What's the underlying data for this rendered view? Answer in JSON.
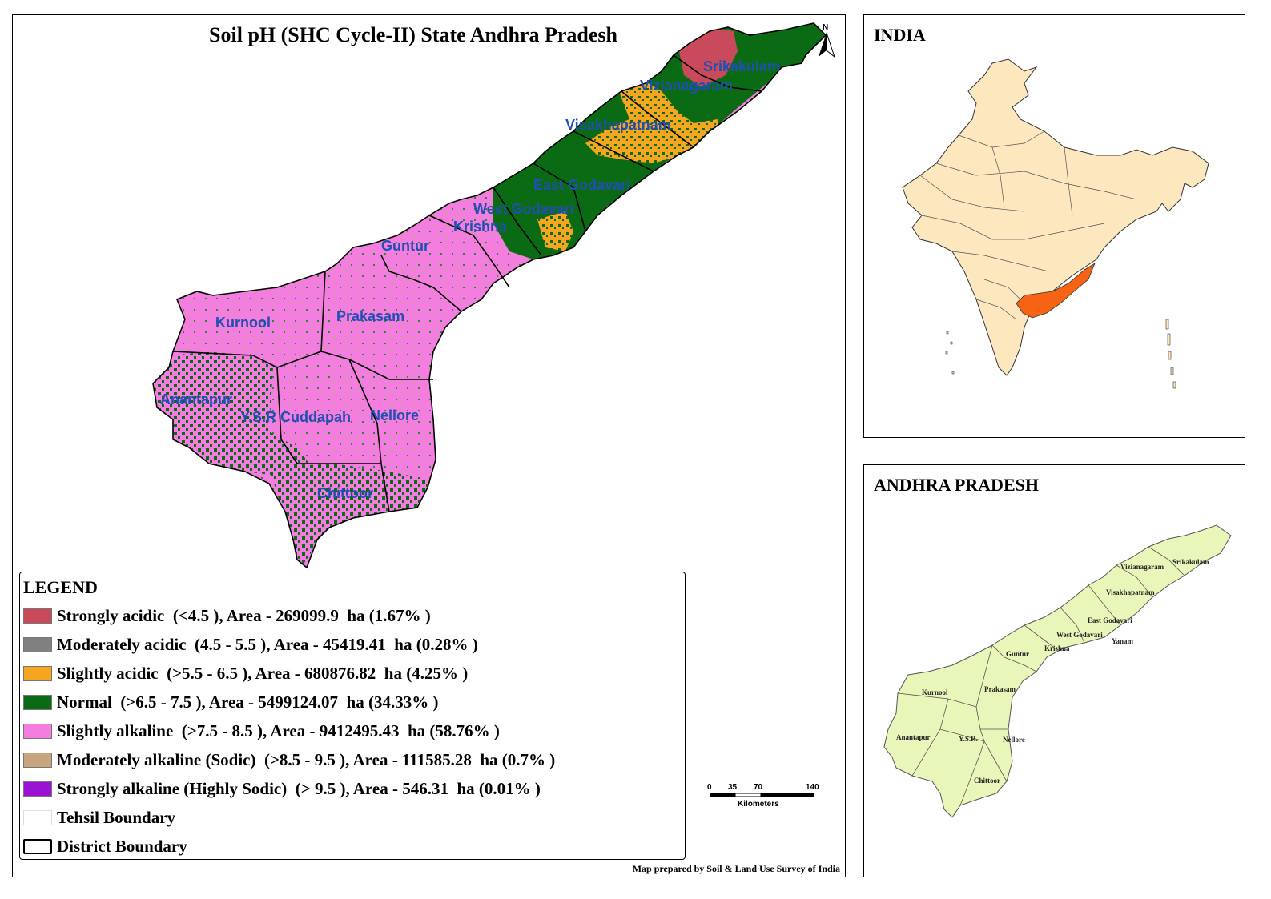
{
  "map": {
    "title": "Soil pH (SHC Cycle-II) State Andhra Pradesh",
    "north_label": "N",
    "credit": "Map prepared by Soil & Land Use Survey of India",
    "scale_bar": {
      "ticks": [
        "0",
        "35",
        "70",
        "140"
      ],
      "unit": "Kilometers"
    },
    "district_labels": [
      "Srikakulam",
      "Vizianagaram",
      "Visakhapatnam",
      "East Godavari",
      "West Godavari",
      "Krishna",
      "Guntur",
      "Kurnool",
      "Prakasam",
      "Anantapur",
      "Y.S.R Cuddapah",
      "Nellore",
      "Chittoor"
    ]
  },
  "legend": {
    "title": "LEGEND",
    "items": [
      {
        "label": "Strongly acidic  (<4.5 ), Area - 269099.9  ha (1.67% )",
        "color": "#c94a5a"
      },
      {
        "label": "Moderately acidic  (4.5 - 5.5 ), Area - 45419.41  ha (0.28% )",
        "color": "#808080"
      },
      {
        "label": "Slightly acidic  (>5.5 - 6.5 ), Area - 680876.82  ha (4.25% )",
        "color": "#f5a51e"
      },
      {
        "label": "Normal  (>6.5 - 7.5 ), Area - 5499124.07  ha (34.33% )",
        "color": "#0b6b14"
      },
      {
        "label": "Slightly alkaline  (>7.5 - 8.5 ), Area - 9412495.43  ha (58.76% )",
        "color": "#f47ee0"
      },
      {
        "label": "Moderately alkaline (Sodic)  (>8.5 - 9.5 ), Area - 111585.28  ha (0.7% )",
        "color": "#c7a67d"
      },
      {
        "label": "Strongly alkaline (Highly Sodic)  (> 9.5 ), Area - 546.31  ha (0.01% )",
        "color": "#9b12d4"
      },
      {
        "label": "Tehsil Boundary",
        "color": "#ffffff"
      },
      {
        "label": "District Boundary",
        "color": "#ffffff"
      }
    ]
  },
  "india_inset": {
    "title": "INDIA",
    "land_color": "#fde7bf",
    "highlight_color": "#f76314"
  },
  "ap_inset": {
    "title": "ANDHRA PRADESH",
    "fill_color": "#e8f7b9",
    "district_labels": [
      "Srikakulam",
      "Vizianagaram",
      "Visakhapatnam",
      "East Godavari",
      "West Godavari",
      "Yanam",
      "Krishna",
      "Guntur",
      "Kurnool",
      "Prakasam",
      "Anantapur",
      "Y.S.R.",
      "Nellore",
      "Chittoor"
    ]
  }
}
